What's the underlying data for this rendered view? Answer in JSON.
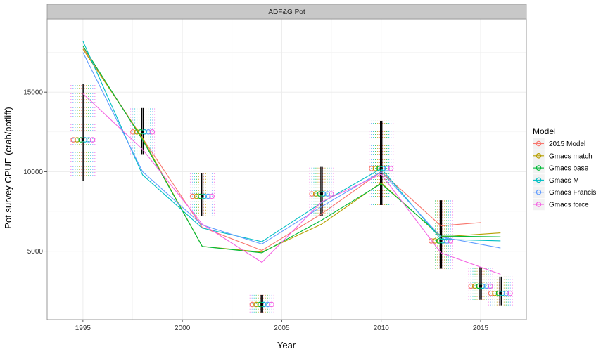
{
  "chart_data": {
    "type": "line",
    "panel_title": "ADF&G Pot",
    "xlabel": "Year",
    "ylabel": "Pot survey CPUE (crab/potlift)",
    "xlim": [
      1993.2,
      2017.3
    ],
    "ylim": [
      700,
      19600
    ],
    "x_ticks": [
      1995,
      2000,
      2005,
      2010,
      2015
    ],
    "y_ticks": [
      5000,
      10000,
      15000
    ],
    "grid": true,
    "legend_position": "right",
    "legend": {
      "title": "Model",
      "entries": [
        "2015 Model",
        "Gmacs match",
        "Gmacs base",
        "Gmacs M",
        "Gmacs Francis",
        "Gmacs force"
      ]
    },
    "series": [
      {
        "name": "2015 Model",
        "color": "#F8766D",
        "x": [
          1995,
          1998,
          2001,
          2004,
          2007,
          2010,
          2013,
          2015
        ],
        "y": [
          17800,
          12100,
          6500,
          5050,
          7350,
          10000,
          6600,
          6800
        ]
      },
      {
        "name": "Gmacs match",
        "color": "#B79F00",
        "x": [
          1995,
          1998,
          2001,
          2004,
          2007,
          2010,
          2013,
          2016
        ],
        "y": [
          17700,
          12100,
          5300,
          4950,
          6700,
          9300,
          5900,
          6150
        ]
      },
      {
        "name": "Gmacs base",
        "color": "#00BA38",
        "x": [
          1995,
          1998,
          2001,
          2004,
          2007,
          2010,
          2013,
          2016
        ],
        "y": [
          17900,
          12000,
          5300,
          4900,
          6950,
          9250,
          5950,
          5900
        ]
      },
      {
        "name": "Gmacs M",
        "color": "#00BFC4",
        "x": [
          1995,
          1998,
          2001,
          2004,
          2007,
          2010,
          2013,
          2016
        ],
        "y": [
          18200,
          9800,
          6450,
          5600,
          8050,
          10200,
          5750,
          5650
        ]
      },
      {
        "name": "Gmacs Francis",
        "color": "#619CFF",
        "x": [
          1995,
          1998,
          2001,
          2004,
          2007,
          2010,
          2013,
          2016
        ],
        "y": [
          17500,
          10000,
          6650,
          5450,
          7800,
          10000,
          5900,
          5200
        ]
      },
      {
        "name": "Gmacs force",
        "color": "#F564E3",
        "x": [
          1995,
          1998,
          2001,
          2004,
          2007,
          2010,
          2013,
          2016
        ],
        "y": [
          14900,
          11400,
          6700,
          4300,
          8100,
          9850,
          4900,
          3550
        ]
      }
    ],
    "observed": {
      "x": [
        1995,
        1998,
        2001,
        2004,
        2007,
        2010,
        2013,
        2015
      ],
      "y": [
        12000,
        12500,
        8450,
        1650,
        8600,
        10200,
        5650,
        2800
      ],
      "lower": [
        9400,
        11100,
        7200,
        1150,
        7200,
        7900,
        3900,
        1950
      ],
      "upper": [
        15500,
        14000,
        9900,
        2250,
        10300,
        13200,
        8200,
        4000
      ],
      "last_year_x": 2016,
      "last_year_y": 2350,
      "last_year_lower": 1600,
      "last_year_upper": 3400
    }
  }
}
